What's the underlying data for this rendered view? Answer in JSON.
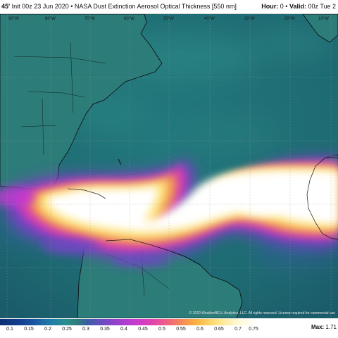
{
  "header": {
    "model_code": "45'",
    "init_text": "Init 00z 23 Jun 2020",
    "separator": "•",
    "product_title": "NASA Dust Extinction Aerosol Optical Thickness [550 nm]",
    "hour_label": "Hour:",
    "hour_value": "0",
    "valid_label": "Valid:",
    "valid_value": "00z Tue 2"
  },
  "map": {
    "longitude_labels": [
      "90°W",
      "80°W",
      "70°W",
      "60°W",
      "50°W",
      "40°W",
      "30°W",
      "20°W",
      "10°W"
    ],
    "copyright": "© 2020 WeatherBELL Analytics, LLC. All rights reserved. License required for commercial use",
    "colors": {
      "ocean": "#1f6f75",
      "land": "#2e7f7c",
      "coast": "#0a0a0a",
      "dust_light": "#ffffff",
      "dust_mid": "#fde27a",
      "dust_purple": "#a33bd0"
    }
  },
  "legend": {
    "ticks": [
      "0.1",
      "0.15",
      "0.2",
      "0.25",
      "0.3",
      "0.35",
      "0.4",
      "0.45",
      "0.5",
      "0.55",
      "0.6",
      "0.65",
      "0.7",
      "0.75"
    ],
    "max_label": "Max:",
    "max_value": "1.71"
  }
}
